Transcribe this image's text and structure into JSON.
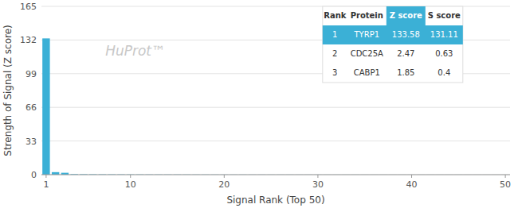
{
  "chart_data": {
    "type": "bar",
    "x": [
      1,
      2,
      3,
      4,
      5,
      6,
      7,
      8,
      9,
      10,
      11,
      12,
      13,
      14,
      15,
      16,
      17,
      18,
      19,
      20,
      21,
      22,
      23,
      24,
      25,
      26,
      27,
      28,
      29,
      30,
      31,
      32,
      33,
      34,
      35,
      36,
      37,
      38,
      39,
      40,
      41,
      42,
      43,
      44,
      45,
      46,
      47,
      48,
      49,
      50
    ],
    "values": [
      133.58,
      2.47,
      1.85,
      0.5,
      0.4,
      0.35,
      0.3,
      0.28,
      0.25,
      0.22,
      0.2,
      0.18,
      0.17,
      0.16,
      0.15,
      0.14,
      0.13,
      0.12,
      0.11,
      0.1,
      0.09,
      0.09,
      0.08,
      0.08,
      0.07,
      0.07,
      0.07,
      0.06,
      0.06,
      0.06,
      0.05,
      0.05,
      0.05,
      0.05,
      0.04,
      0.04,
      0.04,
      0.04,
      0.04,
      0.03,
      0.03,
      0.03,
      0.03,
      0.03,
      0.03,
      0.02,
      0.02,
      0.02,
      0.02,
      0.02
    ],
    "color": "#3bb0d6",
    "x_label": "Signal Rank (Top 50)",
    "y_label": "Strength of Signal (Z score)",
    "xlim": [
      0.5,
      50.5
    ],
    "xticks": [
      1,
      10,
      20,
      30,
      40,
      50
    ],
    "ylim": [
      0,
      165
    ],
    "yticks": [
      0,
      33,
      66,
      99,
      132,
      165
    ],
    "grid": true,
    "annotations": [
      {
        "text": "HuProt™"
      }
    ],
    "table": {
      "columns": [
        "Rank",
        "Protein",
        "Z score",
        "S score"
      ],
      "rows": [
        [
          "1",
          "TYRP1",
          "133.58",
          "131.11"
        ],
        [
          "2",
          "CDC25A",
          "2.47",
          "0.63"
        ],
        [
          "3",
          "CABP1",
          "1.85",
          "0.4"
        ]
      ]
    }
  }
}
